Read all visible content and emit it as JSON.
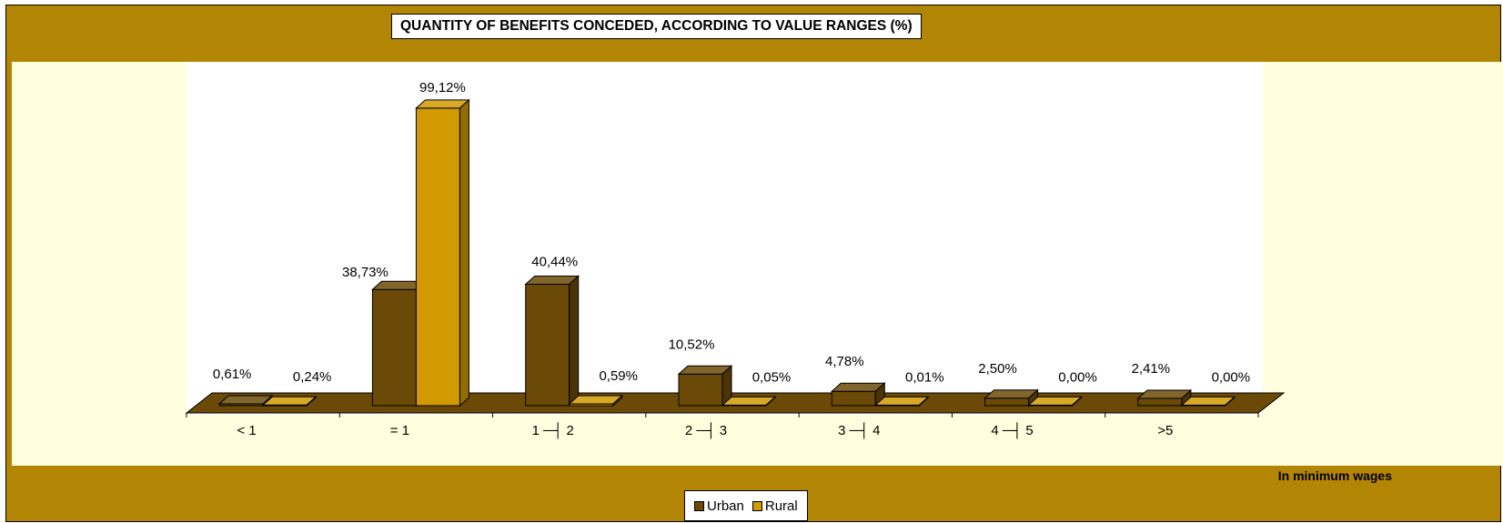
{
  "chart_data": {
    "type": "bar",
    "title": "QUANTITY OF BENEFITS CONCEDED, ACCORDING TO VALUE RANGES (%)",
    "xlabel": "In minimum wages",
    "categories": [
      "< 1",
      "= 1",
      "1 ─┤ 2",
      "2 ─┤ 3",
      "3 ─┤ 4",
      "4 ─┤ 5",
      ">5"
    ],
    "series": [
      {
        "name": "Urban",
        "color": "#6b4a07",
        "values": [
          0.61,
          38.73,
          40.44,
          10.52,
          4.78,
          2.5,
          2.41
        ],
        "labels": [
          "0,61%",
          "38,73%",
          "40,44%",
          "10,52%",
          "4,78%",
          "2,50%",
          "2,41%"
        ]
      },
      {
        "name": "Rural",
        "color": "#d19a00",
        "values": [
          0.24,
          99.12,
          0.59,
          0.05,
          0.01,
          0.0,
          0.0
        ],
        "labels": [
          "0,24%",
          "99,12%",
          "0,59%",
          "0,05%",
          "0,01%",
          "0,00%",
          "0,00%"
        ]
      }
    ],
    "ylim": [
      0,
      100
    ],
    "grid": false,
    "legend_position": "bottom"
  },
  "colors": {
    "frame": "#b38504",
    "plot_background": "#ffffe0",
    "floor": "#6b4a07"
  }
}
